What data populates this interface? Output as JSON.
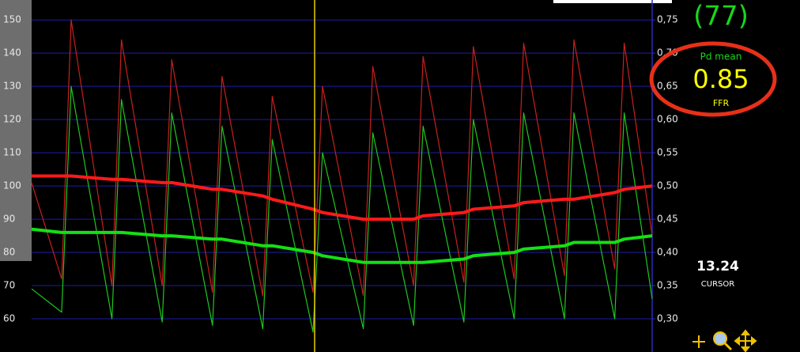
{
  "chart_data": {
    "type": "line",
    "categories": [
      null,
      null,
      null,
      null,
      null,
      null,
      null,
      null,
      null,
      null,
      null,
      null,
      null,
      null,
      null,
      null,
      null,
      null,
      null,
      null,
      null,
      null,
      null,
      null,
      null,
      null
    ],
    "series": [
      {
        "color": "#c8201c",
        "values": [
          101,
          72,
          150,
          70,
          144,
          70,
          138,
          68,
          133,
          67,
          127,
          68,
          130,
          67,
          136,
          70,
          139,
          71,
          142,
          72,
          143,
          73,
          144,
          75,
          143,
          85
        ]
      },
      {
        "color": "#1ec81e",
        "values": [
          69,
          62,
          130,
          60,
          126,
          59,
          122,
          58,
          118,
          57,
          114,
          56,
          110,
          57,
          116,
          58,
          118,
          59,
          120,
          60,
          122,
          60,
          122,
          60,
          122,
          66
        ]
      },
      {
        "color": "#ff1a1a",
        "values": [
          103,
          103,
          103,
          102,
          102,
          101,
          101,
          99,
          99,
          97,
          96,
          93,
          92,
          90,
          90,
          90,
          91,
          92,
          93,
          94,
          95,
          96,
          96,
          98,
          99,
          100
        ]
      },
      {
        "color": "#14e014",
        "values": [
          87,
          86,
          86,
          86,
          86,
          85,
          85,
          84,
          84,
          82,
          82,
          80,
          79,
          77,
          77,
          77,
          77,
          78,
          79,
          80,
          81,
          82,
          83,
          83,
          84,
          85
        ]
      }
    ],
    "ylim": [
      50,
      156
    ],
    "yticks": [
      60,
      70,
      80,
      90,
      100,
      110,
      120,
      130,
      140,
      150
    ],
    "y2lim": [
      0.25,
      0.78
    ],
    "y2ticks": [
      {
        "value": 0.3,
        "label": "0,30"
      },
      {
        "value": 0.35,
        "label": "0,35"
      },
      {
        "value": 0.4,
        "label": "0,40"
      },
      {
        "value": 0.45,
        "label": "0,45"
      },
      {
        "value": 0.5,
        "label": "0,50"
      },
      {
        "value": 0.55,
        "label": "0,55"
      },
      {
        "value": 0.6,
        "label": "0,60"
      },
      {
        "value": 0.65,
        "label": "0,65"
      },
      {
        "value": 0.7,
        "label": "0,70"
      },
      {
        "value": 0.75,
        "label": "0,75"
      }
    ],
    "grid": true
  },
  "panel": {
    "pd_value": "(77)",
    "pd_label": "Pd mean",
    "ffr_value": "0.85",
    "ffr_label": "FFR",
    "cursor_value": "13.24",
    "cursor_label": "CURSOR"
  }
}
